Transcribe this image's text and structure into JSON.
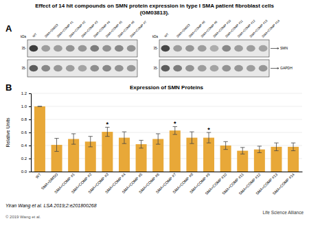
{
  "chart_data": [
    {
      "type": "blot",
      "title": "Effect of 14 hit compounds on SMN protein expression in type I SMA patient fibroblast cells",
      "subtitle": "(GM03813).",
      "annotations": [
        "A",
        "kDa",
        "35-",
        "35-"
      ],
      "categories": [
        "WT",
        "SMA+DMSO",
        "SMA+COMP #1",
        "SMA+COMP #2",
        "SMA+COMP #3",
        "SMA+COMP #4",
        "SMA+COMP #5",
        "SMA+COMP #6",
        "SMA+COMP #7"
      ],
      "series": [
        {
          "values": [
            0.9,
            0.45,
            0.45,
            0.5,
            0.48,
            0.6,
            0.5,
            0.55,
            0.5
          ]
        },
        {
          "values": [
            0.75,
            0.55,
            0.48,
            0.45,
            0.42,
            0.52,
            0.55,
            0.5,
            0.48
          ]
        }
      ]
    },
    {
      "type": "blot",
      "annotations": [
        "kDa",
        "35-",
        "35-"
      ],
      "categories": [
        "WT",
        "SMA+DMSO",
        "SMA+COMP #8",
        "SMA+COMP #9",
        "SMA+COMP #10",
        "SMA+COMP #11",
        "SMA+COMP #12",
        "SMA+COMP #13",
        "SMA+COMP #14"
      ],
      "series": [
        {
          "name": "SMN",
          "values": [
            0.85,
            0.45,
            0.48,
            0.45,
            0.38,
            0.55,
            0.45,
            0.45,
            0.42
          ]
        },
        {
          "name": "GAPDH",
          "values": [
            0.75,
            0.6,
            0.5,
            0.45,
            0.42,
            0.5,
            0.48,
            0.45,
            0.48
          ]
        }
      ]
    },
    {
      "type": "bar",
      "title": "Expression of SMN Proteins",
      "annotations": [
        "B",
        "Yiran Wang et al. LSA 2019;2:e201800268",
        "© 2019 Wang et al.",
        "Life Science Alliance"
      ],
      "categories": [
        "WT",
        "SMA+DMSO",
        "SMA+COMP #1",
        "SMA+COMP #2",
        "SMA+COMP #3",
        "SMA+COMP #4",
        "SMA+COMP #5",
        "SMA+COMP #6",
        "SMA+COMP #7",
        "SMA+COMP #8",
        "SMA+COMP #9",
        "SMA+COMP #10",
        "SMA+COMP #11",
        "SMA+COMP #12",
        "SMA+COMP #13",
        "SMA+COMP #14"
      ],
      "values": [
        1.0,
        0.41,
        0.5,
        0.46,
        0.61,
        0.52,
        0.42,
        0.5,
        0.63,
        0.52,
        0.52,
        0.4,
        0.32,
        0.34,
        0.38,
        0.38
      ],
      "errors": [
        0.0,
        0.1,
        0.08,
        0.08,
        0.07,
        0.09,
        0.06,
        0.08,
        0.06,
        0.09,
        0.08,
        0.06,
        0.05,
        0.05,
        0.06,
        0.06
      ],
      "significance": [
        null,
        null,
        null,
        null,
        "*",
        null,
        null,
        null,
        "*",
        null,
        "*",
        null,
        null,
        null,
        null,
        null
      ],
      "color": "#E8A838",
      "ylabel": "Relative Units",
      "ylim": [
        0,
        1.2
      ],
      "yticks": [
        {
          "value": 0,
          "label": "0.0"
        },
        0.2,
        0.4,
        0.6,
        0.8,
        {
          "value": 1.0,
          "label": "1.0"
        },
        1.2
      ],
      "grid": true
    }
  ]
}
